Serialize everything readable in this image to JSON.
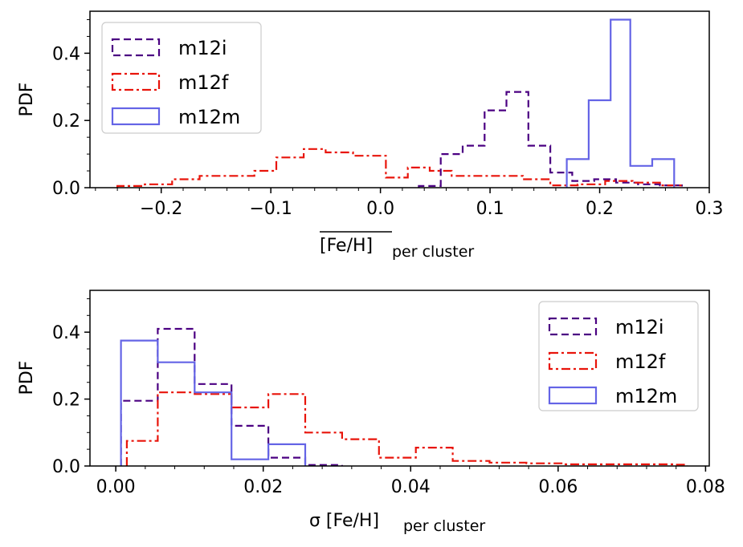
{
  "chart_data": [
    {
      "type": "histogram",
      "xlabel_main": "[Fe/H]",
      "xlabel_sub": "per cluster",
      "xlabel_overline": true,
      "ylabel": "PDF",
      "xlim": [
        -0.265,
        0.3
      ],
      "ylim": [
        0,
        0.525
      ],
      "xticks": [
        -0.2,
        -0.1,
        0.0,
        0.1,
        0.2,
        0.3
      ],
      "xtick_labels": [
        "−0.2",
        "−0.1",
        "0.0",
        "0.1",
        "0.2",
        "0.3"
      ],
      "yticks": [
        0.0,
        0.2,
        0.4
      ],
      "ytick_labels": [
        "0.0",
        "0.2",
        "0.4"
      ],
      "legend_position": "upper-left",
      "series": [
        {
          "name": "m12i",
          "color": "#4b0082",
          "linestyle": "dashed",
          "edges": [
            0.035,
            0.055,
            0.075,
            0.095,
            0.115,
            0.135,
            0.155,
            0.175,
            0.195,
            0.215,
            0.235,
            0.255,
            0.275
          ],
          "values": [
            0.005,
            0.1,
            0.125,
            0.23,
            0.285,
            0.125,
            0.045,
            0.02,
            0.025,
            0.015,
            0.01,
            0.007
          ]
        },
        {
          "name": "m12f",
          "color": "#e8140a",
          "linestyle": "dashdot",
          "edges": [
            -0.24,
            -0.215,
            -0.19,
            -0.165,
            -0.14,
            -0.115,
            -0.095,
            -0.07,
            -0.05,
            -0.025,
            0.005,
            0.025,
            0.045,
            0.065,
            0.085,
            0.105,
            0.13,
            0.155,
            0.18,
            0.205,
            0.23,
            0.255,
            0.275
          ],
          "values": [
            0.005,
            0.01,
            0.025,
            0.035,
            0.035,
            0.05,
            0.09,
            0.115,
            0.105,
            0.095,
            0.03,
            0.06,
            0.05,
            0.035,
            0.035,
            0.035,
            0.025,
            0.007,
            0.01,
            0.02,
            0.015,
            0.007
          ]
        },
        {
          "name": "m12m",
          "color": "#6464e6",
          "linestyle": "solid",
          "edges": [
            0.17,
            0.19,
            0.21,
            0.228,
            0.248,
            0.268
          ],
          "values": [
            0.085,
            0.26,
            0.5,
            0.065,
            0.085
          ]
        }
      ]
    },
    {
      "type": "histogram",
      "xlabel_main": "σ [Fe/H]",
      "xlabel_sub": "per cluster",
      "ylabel": "PDF",
      "xlim": [
        -0.0035,
        0.0805
      ],
      "ylim": [
        0,
        0.525
      ],
      "xticks": [
        0.0,
        0.02,
        0.04,
        0.06,
        0.08
      ],
      "xtick_labels": [
        "0.00",
        "0.02",
        "0.04",
        "0.06",
        "0.08"
      ],
      "yticks": [
        0.0,
        0.2,
        0.4
      ],
      "ytick_labels": [
        "0.0",
        "0.2",
        "0.4"
      ],
      "legend_position": "upper-right",
      "series": [
        {
          "name": "m12i",
          "color": "#4b0082",
          "linestyle": "dashed",
          "edges": [
            0.0007,
            0.0057,
            0.0107,
            0.0157,
            0.0207,
            0.0257,
            0.0307
          ],
          "values": [
            0.195,
            0.41,
            0.245,
            0.12,
            0.025,
            0.003
          ]
        },
        {
          "name": "m12f",
          "color": "#e8140a",
          "linestyle": "dashdot",
          "edges": [
            0.0015,
            0.0057,
            0.0107,
            0.0157,
            0.0207,
            0.0257,
            0.0307,
            0.0357,
            0.0407,
            0.0457,
            0.0507,
            0.0557,
            0.0607,
            0.0657,
            0.0707,
            0.0757,
            0.0775
          ],
          "values": [
            0.075,
            0.22,
            0.215,
            0.175,
            0.215,
            0.1,
            0.08,
            0.025,
            0.055,
            0.015,
            0.01,
            0.008,
            0.005,
            0.005,
            0.005,
            0.004
          ]
        },
        {
          "name": "m12m",
          "color": "#6464e6",
          "linestyle": "solid",
          "edges": [
            0.0007,
            0.0057,
            0.0107,
            0.0157,
            0.0207,
            0.0257
          ],
          "values": [
            0.375,
            0.31,
            0.22,
            0.02,
            0.065
          ]
        }
      ]
    }
  ]
}
